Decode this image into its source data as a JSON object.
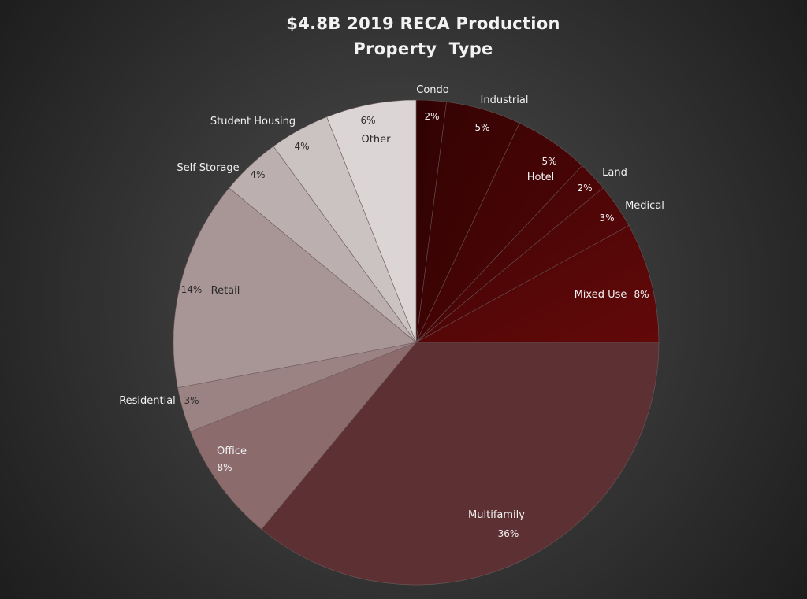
{
  "chart_data": {
    "type": "pie",
    "title": "$4.8B 2019 RECA Production",
    "subtitle": "Property  Type",
    "slices": [
      {
        "label": "Condo",
        "value": 2,
        "value_label": "2%",
        "color": "#3e0304"
      },
      {
        "label": "Industrial",
        "value": 5,
        "value_label": "5%",
        "color": "#460405"
      },
      {
        "label": "Hotel",
        "value": 5,
        "value_label": "5%",
        "color": "#4e0506"
      },
      {
        "label": "Land",
        "value": 2,
        "value_label": "2%",
        "color": "#550607"
      },
      {
        "label": "Medical",
        "value": 3,
        "value_label": "3%",
        "color": "#5b0708"
      },
      {
        "label": "Mixed Use",
        "value": 8,
        "value_label": "8%",
        "color": "#620809"
      },
      {
        "label": "Multifamily",
        "value": 36,
        "value_label": "36%",
        "color": "#5d3133"
      },
      {
        "label": "Office",
        "value": 8,
        "value_label": "8%",
        "color": "#8c6b6c"
      },
      {
        "label": "Residential",
        "value": 3,
        "value_label": "3%",
        "color": "#9b8384"
      },
      {
        "label": "Retail",
        "value": 14,
        "value_label": "14%",
        "color": "#a89596"
      },
      {
        "label": "Self-Storage",
        "value": 4,
        "value_label": "4%",
        "color": "#bbafaf"
      },
      {
        "label": "Student Housing",
        "value": 4,
        "value_label": "4%",
        "color": "#cbc2c2"
      },
      {
        "label": "Other",
        "value": 6,
        "value_label": "6%",
        "color": "#dcd5d5"
      }
    ]
  }
}
